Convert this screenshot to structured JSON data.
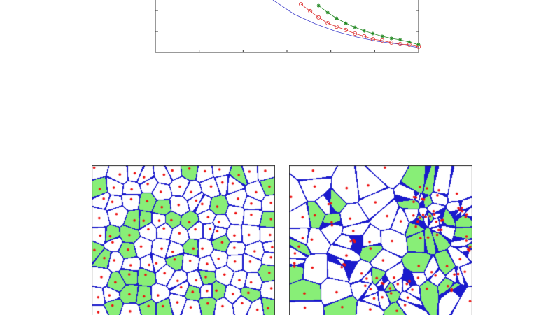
{
  "chart_data": {
    "type": "line",
    "title": "",
    "xlabel": "",
    "ylabel": "",
    "xlim": [
      0,
      6
    ],
    "ylim": [
      0,
      2.5
    ],
    "x_ticks": [
      0,
      1,
      2,
      3,
      4,
      5,
      6
    ],
    "y_ticks": [
      0,
      1,
      2
    ],
    "tick_labels_visible": false,
    "grid": false,
    "series": [
      {
        "color": "#4444cc",
        "marker": "none",
        "x": [
          2.68,
          3.16,
          3.64,
          4.12,
          4.6,
          5.07,
          5.55,
          6.0
        ],
        "y": [
          2.5,
          1.83,
          1.37,
          1.0,
          0.73,
          0.53,
          0.4,
          0.23
        ]
      },
      {
        "color": "#dd3333",
        "marker": "circle",
        "x": [
          3.32,
          3.53,
          3.72,
          3.93,
          4.13,
          4.34,
          4.55,
          4.76,
          4.96,
          5.17,
          5.38,
          5.58,
          5.79,
          6.0
        ],
        "y": [
          2.3,
          1.97,
          1.67,
          1.4,
          1.23,
          1.07,
          0.9,
          0.77,
          0.63,
          0.57,
          0.47,
          0.4,
          0.37,
          0.27
        ]
      },
      {
        "color": "#228822",
        "marker": "star",
        "x": [
          3.72,
          3.93,
          4.13,
          4.34,
          4.55,
          4.76,
          4.96,
          5.17,
          5.38,
          5.58,
          5.79,
          6.0
        ],
        "y": [
          2.23,
          1.9,
          1.63,
          1.4,
          1.2,
          1.03,
          0.9,
          0.77,
          0.67,
          0.6,
          0.5,
          0.37
        ]
      }
    ]
  },
  "voronoi_panels": [
    {
      "edge_color": "#1a1acc",
      "fill_color": "#88ee77",
      "site_color": "#ee1111"
    },
    {
      "edge_color": "#1a1acc",
      "fill_color": "#88ee77",
      "site_color": "#ee1111"
    }
  ]
}
